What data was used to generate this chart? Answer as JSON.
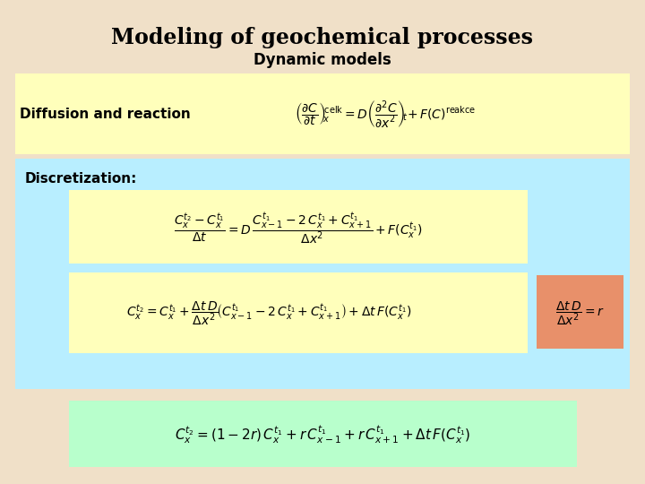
{
  "title": "Modeling of geochemical processes",
  "subtitle": "Dynamic models",
  "bg_color": "#f0e0c8",
  "title_color": "#000000",
  "title_fontsize": 17,
  "subtitle_fontsize": 12,
  "label_diffusion": "Diffusion and reaction",
  "label_discretization": "Discretization:",
  "yellow_bg": "#ffffbb",
  "blue_bg": "#b8eeff",
  "orange_bg": "#e8906a",
  "green_bg": "#b8ffcc",
  "small_fontsize": 10,
  "med_fontsize": 11
}
